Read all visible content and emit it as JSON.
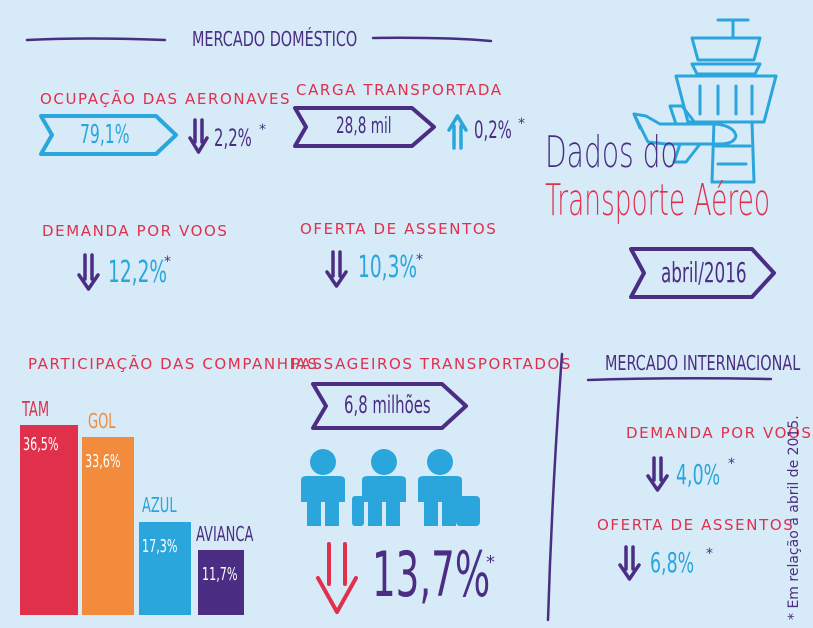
{
  "domestic": {
    "title": "MERCADO DOMÉSTICO",
    "occupancy": {
      "label": "OCUPAÇÃO DAS AERONAVES",
      "value": "79,1%",
      "change": "2,2%",
      "direction": "down",
      "asterisk": "*"
    },
    "cargo": {
      "label": "CARGA TRANSPORTADA",
      "value": "28,8 mil",
      "change": "0,2%",
      "direction": "up",
      "asterisk": "*"
    },
    "demand": {
      "label": "DEMANDA POR VOOS",
      "change": "12,2%",
      "direction": "down",
      "asterisk": "*"
    },
    "seats": {
      "label": "OFERTA DE ASSENTOS",
      "change": "10,3%",
      "direction": "down",
      "asterisk": "*"
    }
  },
  "header": {
    "title_line1": "Dados do",
    "title_line2": "Transporte Aéreo",
    "period": "abril/2016"
  },
  "share": {
    "label": "PARTICIPAÇÃO DAS COMPANHIAS",
    "companies": [
      {
        "name": "TAM",
        "value": "36,5%",
        "percent": 36.5,
        "color": "#e0304b"
      },
      {
        "name": "GOL",
        "value": "33,6%",
        "percent": 33.6,
        "color": "#f28b3c"
      },
      {
        "name": "AZUL",
        "value": "17,3%",
        "percent": 17.3,
        "color": "#2aa6dc"
      },
      {
        "name": "AVIANCA",
        "value": "11,7%",
        "percent": 11.7,
        "color": "#4b2e83"
      }
    ]
  },
  "passengers": {
    "label": "PASSAGEIROS TRANSPORTADOS",
    "value": "6,8 milhões",
    "change": "13,7%",
    "direction": "down",
    "asterisk": "*"
  },
  "international": {
    "title": "MERCADO INTERNACIONAL",
    "demand": {
      "label": "DEMANDA POR VOOS",
      "change": "4,0%",
      "direction": "down",
      "asterisk": "*"
    },
    "seats": {
      "label": "OFERTA DE ASSENTOS",
      "change": "6,8%",
      "direction": "down",
      "asterisk": "*"
    }
  },
  "footnote": "* Em relação a abril de 2015.",
  "colors": {
    "red": "#e0304b",
    "purple": "#4b2e83",
    "blue": "#2aa6dc",
    "orange": "#f28b3c",
    "background": "#d6eaf8"
  },
  "icons": [
    "arrow-down-icon",
    "arrow-up-icon",
    "passenger-icon",
    "control-tower-icon",
    "airplane-icon"
  ]
}
